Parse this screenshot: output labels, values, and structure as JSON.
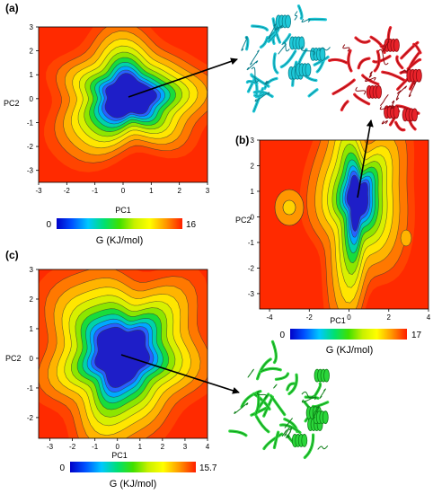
{
  "chart_data": [
    {
      "type": "heatmap",
      "panel_label": "(a)",
      "xlabel": "PC1",
      "ylabel": "PC2",
      "xlim": [
        -3,
        3
      ],
      "ylim": [
        -3.5,
        3
      ],
      "x_ticks": [
        "-3",
        "-2",
        "-1",
        "0",
        "1",
        "2",
        "3"
      ],
      "y_ticks": [
        "-3",
        "-2",
        "-1",
        "0",
        "1",
        "2",
        "3"
      ],
      "colorbar": {
        "min_label": "0",
        "max_label": "16",
        "label": "G (KJ/mol)",
        "min": 0,
        "max": 16
      },
      "basin_center": [
        0.2,
        0.2
      ]
    },
    {
      "type": "heatmap",
      "panel_label": "(b)",
      "xlabel": "PC1",
      "ylabel": "PC2",
      "xlim": [
        -4.5,
        4
      ],
      "ylim": [
        -3.6,
        3
      ],
      "x_ticks": [
        "-4",
        "-2",
        "0",
        "2",
        "4"
      ],
      "y_ticks": [
        "-3",
        "-2",
        "-1",
        "0",
        "1",
        "2",
        "3"
      ],
      "colorbar": {
        "min_label": "0",
        "max_label": "17",
        "label": "G (KJ/mol)",
        "min": 0,
        "max": 17
      },
      "basin_center": [
        0.4,
        0.7
      ]
    },
    {
      "type": "heatmap",
      "panel_label": "(c)",
      "xlabel": "PC1",
      "ylabel": "PC2",
      "xlim": [
        -3.5,
        4
      ],
      "ylim": [
        -2.7,
        3
      ],
      "x_ticks": [
        "-3",
        "-2",
        "-1",
        "0",
        "1",
        "2",
        "3",
        "4"
      ],
      "y_ticks": [
        "-2",
        "-1",
        "0",
        "1",
        "2",
        "3"
      ],
      "colorbar": {
        "min_label": "0",
        "max_label": "15.7",
        "label": "G (KJ/mol)",
        "min": 0,
        "max": 15.7
      },
      "basin_center": [
        0.2,
        -0.4
      ]
    }
  ],
  "structures": [
    {
      "name": "cyan-structure",
      "color": "#1ec8d8",
      "dark": "#0a7f8c"
    },
    {
      "name": "red-structure",
      "color": "#e8222a",
      "dark": "#8c0a10"
    },
    {
      "name": "green-structure",
      "color": "#2bd63a",
      "dark": "#0d7f17"
    }
  ]
}
